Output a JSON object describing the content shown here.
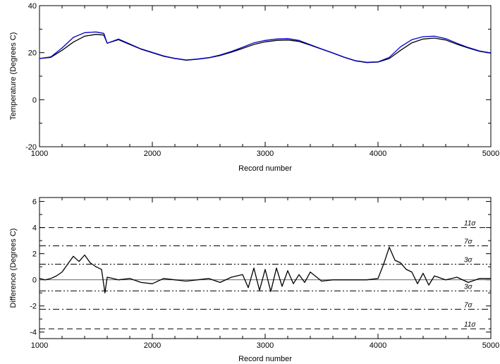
{
  "chart_data": [
    {
      "type": "line",
      "xlabel": "Record number",
      "ylabel": "Temperature (Degrees C)",
      "xlim": [
        1000,
        5000
      ],
      "ylim": [
        -20,
        40
      ],
      "xticks": [
        "1000",
        "2000",
        "3000",
        "4000",
        "5000"
      ],
      "yticks": [
        "-20",
        "0",
        "20",
        "40"
      ],
      "grid": false,
      "series": [
        {
          "color": "#000000",
          "x": [
            1000,
            1100,
            1200,
            1300,
            1400,
            1500,
            1570,
            1600,
            1700,
            1800,
            1900,
            2000,
            2100,
            2200,
            2300,
            2400,
            2500,
            2600,
            2700,
            2800,
            2900,
            3000,
            3100,
            3200,
            3300,
            3400,
            3500,
            3600,
            3700,
            3800,
            3900,
            4000,
            4100,
            4200,
            4300,
            4400,
            4500,
            4600,
            4700,
            4800,
            4900,
            5000
          ],
          "values": [
            17.5,
            18,
            21,
            24.5,
            27,
            27.8,
            27.5,
            24,
            25.5,
            23.5,
            21.5,
            20,
            18.5,
            17.5,
            16.8,
            17.2,
            17.8,
            18.8,
            20.2,
            21.8,
            23.5,
            24.6,
            25.2,
            25.4,
            24.8,
            23.2,
            21.5,
            19.8,
            18,
            16.5,
            15.8,
            16,
            17.5,
            21,
            24.2,
            25.8,
            26.2,
            25.4,
            23.6,
            22,
            20.6,
            19.8
          ]
        },
        {
          "color": "#0000cc",
          "x": [
            1000,
            1100,
            1200,
            1300,
            1400,
            1500,
            1570,
            1600,
            1700,
            1800,
            1900,
            2000,
            2100,
            2200,
            2300,
            2400,
            2500,
            2600,
            2700,
            2800,
            2900,
            3000,
            3100,
            3200,
            3300,
            3400,
            3500,
            3600,
            3700,
            3800,
            3900,
            4000,
            4100,
            4200,
            4300,
            4400,
            4500,
            4600,
            4700,
            4800,
            4900,
            5000
          ],
          "values": [
            17.5,
            18.2,
            22,
            26.5,
            28.5,
            28.8,
            28.2,
            24,
            25.8,
            23.7,
            21.6,
            20.1,
            18.6,
            17.6,
            16.9,
            17.3,
            17.9,
            19,
            20.5,
            22.3,
            24.2,
            25.2,
            25.8,
            26,
            25.2,
            23.4,
            21.6,
            19.9,
            18.1,
            16.6,
            15.9,
            16.1,
            18,
            22.5,
            25.5,
            26.8,
            27,
            26,
            24,
            22.2,
            20.7,
            19.9
          ]
        }
      ]
    },
    {
      "type": "line",
      "xlabel": "Record number",
      "ylabel": "Difference (Degrees C)",
      "xlim": [
        1000,
        5000
      ],
      "ylim": [
        -4.5,
        6.3
      ],
      "xticks": [
        "1000",
        "2000",
        "3000",
        "4000",
        "5000"
      ],
      "yticks": [
        "-4",
        "-2",
        "0",
        "2",
        "4",
        "6"
      ],
      "grid": false,
      "reference_lines": [
        {
          "label": "11σ",
          "value": 4.0,
          "style": "dashed"
        },
        {
          "label": "7σ",
          "value": 2.6,
          "style": "dash-dot"
        },
        {
          "label": "3σ",
          "value": 1.2,
          "style": "dash-dot-dot"
        },
        {
          "label": "3σ",
          "value": -0.85,
          "style": "dash-dot-dot"
        },
        {
          "label": "7σ",
          "value": -2.25,
          "style": "dash-dot"
        },
        {
          "label": "11σ",
          "value": -3.75,
          "style": "dashed"
        }
      ],
      "zero_line": 0,
      "series": [
        {
          "color": "#000000",
          "x": [
            1000,
            1050,
            1100,
            1150,
            1200,
            1250,
            1300,
            1350,
            1400,
            1450,
            1500,
            1550,
            1580,
            1600,
            1650,
            1700,
            1800,
            1900,
            2000,
            2100,
            2200,
            2300,
            2400,
            2500,
            2600,
            2700,
            2800,
            2850,
            2900,
            2950,
            3000,
            3050,
            3100,
            3150,
            3200,
            3250,
            3300,
            3350,
            3400,
            3500,
            3600,
            3700,
            3800,
            3900,
            4000,
            4050,
            4100,
            4150,
            4200,
            4250,
            4300,
            4350,
            4400,
            4450,
            4500,
            4600,
            4700,
            4800,
            4900,
            5000
          ],
          "values": [
            0.1,
            0.0,
            0.1,
            0.3,
            0.6,
            1.2,
            1.8,
            1.4,
            1.9,
            1.3,
            1.0,
            0.8,
            -1.0,
            0.2,
            0.1,
            0.0,
            0.1,
            -0.2,
            -0.3,
            0.1,
            0.0,
            -0.1,
            0.0,
            0.1,
            -0.2,
            0.2,
            0.4,
            -0.6,
            0.9,
            -0.8,
            0.8,
            -0.9,
            0.9,
            -0.5,
            0.7,
            -0.3,
            0.4,
            -0.2,
            0.6,
            -0.1,
            0.0,
            0.0,
            0.0,
            0.0,
            0.1,
            1.2,
            2.5,
            1.5,
            1.3,
            0.8,
            0.6,
            -0.3,
            0.5,
            -0.4,
            0.3,
            0.0,
            0.2,
            -0.2,
            0.1,
            0.1
          ]
        }
      ]
    }
  ]
}
